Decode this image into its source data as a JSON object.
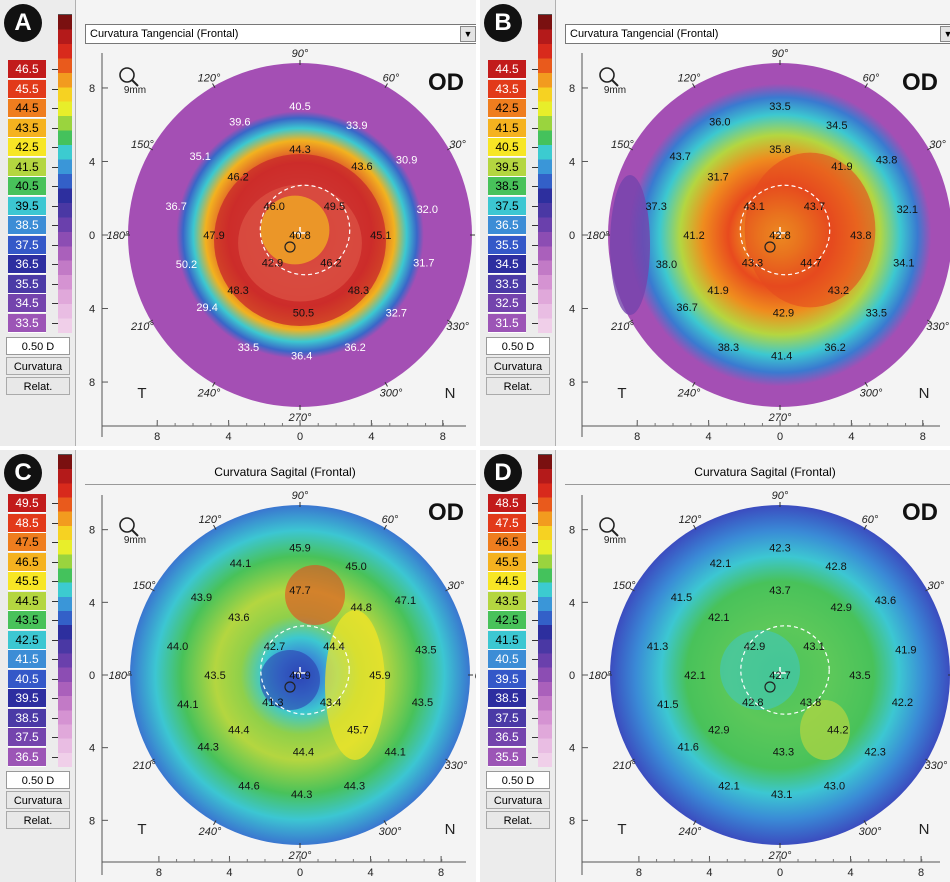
{
  "panels": [
    {
      "id": "A",
      "header_type": "dropdown",
      "map_title": "Curvatura Tangencial (Frontal)",
      "dropdown_arrow": "▼",
      "eye": "OD",
      "zoom": "9mm",
      "scale_values": [
        "46.5",
        "45.5",
        "44.5",
        "43.5",
        "42.5",
        "41.5",
        "40.5",
        "39.5",
        "38.5",
        "37.5",
        "36.5",
        "35.5",
        "34.5",
        "33.5"
      ],
      "step": "0.50 D",
      "mode_label": "Curvatura",
      "relat_label": "Relat.",
      "map_values": [
        "40.5",
        "39.6",
        "33.9",
        "44.3",
        "35.1",
        "46.2",
        "43.6",
        "30.9",
        "36.7",
        "46.0",
        "49.5",
        "32.0",
        "47.9",
        "40.8",
        "45.1",
        "50.2",
        "42.9",
        "46.2",
        "31.7",
        "48.3",
        "48.3",
        "29.4",
        "50.5",
        "32.7",
        "33.5",
        "36.2",
        "36.4"
      ]
    },
    {
      "id": "B",
      "header_type": "dropdown",
      "map_title": "Curvatura Tangencial (Frontal)",
      "dropdown_arrow": "▼",
      "eye": "OD",
      "zoom": "9mm",
      "scale_values": [
        "44.5",
        "43.5",
        "42.5",
        "41.5",
        "40.5",
        "39.5",
        "38.5",
        "37.5",
        "36.5",
        "35.5",
        "34.5",
        "33.5",
        "32.5",
        "31.5"
      ],
      "step": "0.50 D",
      "mode_label": "Curvatura",
      "relat_label": "Relat.",
      "map_values": [
        "33.5",
        "36.0",
        "34.5",
        "35.8",
        "43.7",
        "31.7",
        "41.9",
        "43.8",
        "37.3",
        "43.1",
        "43.7",
        "32.1",
        "41.2",
        "42.8",
        "43.8",
        "38.0",
        "43.3",
        "44.7",
        "34.1",
        "41.9",
        "43.2",
        "36.7",
        "42.9",
        "33.5",
        "38.3",
        "36.2",
        "41.4"
      ]
    },
    {
      "id": "C",
      "header_type": "title",
      "map_title": "Curvatura Sagital (Frontal)",
      "eye": "OD",
      "zoom": "9mm",
      "scale_values": [
        "49.5",
        "48.5",
        "47.5",
        "46.5",
        "45.5",
        "44.5",
        "43.5",
        "42.5",
        "41.5",
        "40.5",
        "39.5",
        "38.5",
        "37.5",
        "36.5"
      ],
      "step": "0.50 D",
      "mode_label": "Curvatura",
      "relat_label": "Relat.",
      "map_values": [
        "45.9",
        "44.1",
        "45.0",
        "47.7",
        "43.9",
        "43.6",
        "44.8",
        "47.1",
        "44.0",
        "42.7",
        "44.4",
        "43.5",
        "43.5",
        "40.9",
        "45.9",
        "44.1",
        "41.3",
        "43.4",
        "43.5",
        "44.4",
        "45.7",
        "44.3",
        "44.4",
        "44.1",
        "44.6",
        "44.3",
        "44.3"
      ]
    },
    {
      "id": "D",
      "header_type": "title",
      "map_title": "Curvatura Sagital (Frontal)",
      "eye": "OD",
      "zoom": "9mm",
      "scale_values": [
        "48.5",
        "47.5",
        "46.5",
        "45.5",
        "44.5",
        "43.5",
        "42.5",
        "41.5",
        "40.5",
        "39.5",
        "38.5",
        "37.5",
        "36.5",
        "35.5"
      ],
      "step": "0.50 D",
      "mode_label": "Curvatura",
      "relat_label": "Relat.",
      "map_values": [
        "42.3",
        "42.1",
        "42.8",
        "43.7",
        "41.5",
        "42.1",
        "42.9",
        "43.6",
        "41.3",
        "42.9",
        "43.1",
        "41.9",
        "42.1",
        "42.7",
        "43.5",
        "41.5",
        "42.8",
        "43.8",
        "42.2",
        "42.9",
        "44.2",
        "41.6",
        "43.3",
        "42.3",
        "42.1",
        "43.0",
        "43.1"
      ]
    }
  ],
  "angle_labels": [
    "90°",
    "60°",
    "30°",
    "0°",
    "330°",
    "300°",
    "270°",
    "240°",
    "210°",
    "180°",
    "150°",
    "120°"
  ],
  "axis_ticks_y": [
    "8",
    "4",
    "0",
    "4",
    "8"
  ],
  "axis_ticks_x": [
    "8",
    "4",
    "0",
    "4",
    "8"
  ],
  "side_left": "T",
  "side_right": "N",
  "colors": {
    "tangential_scale": [
      "#b41a1a",
      "#e0331b",
      "#ee7a1c",
      "#f3b81f",
      "#f6ea24",
      "#a8d43c",
      "#3fbf5a",
      "#39c6d4",
      "#3a8ad6",
      "#3355c8",
      "#2b2ba0",
      "#4a3aa8",
      "#7a46b0",
      "#a55ab8",
      "#c47ac8"
    ],
    "disc_outer": "#a44fb4"
  }
}
